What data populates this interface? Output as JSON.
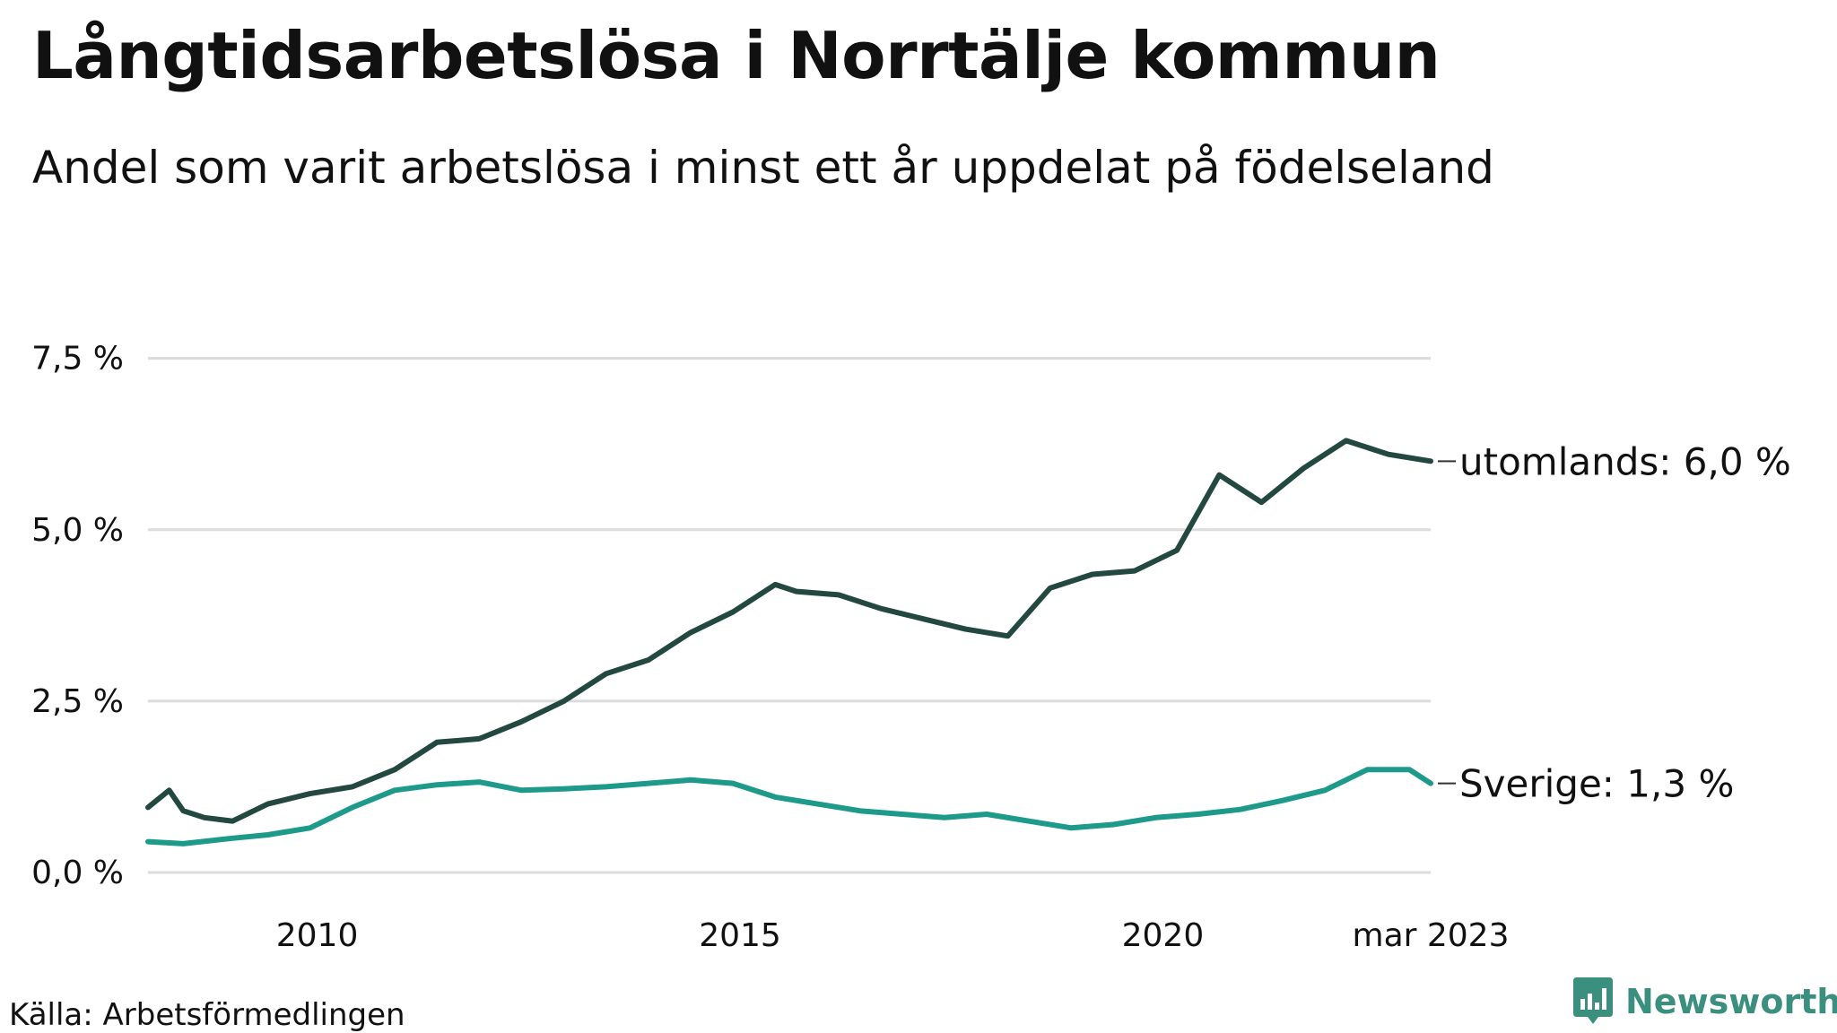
{
  "chart_data": {
    "type": "line",
    "title": "Långtidsarbetslösa i Norrtälje kommun",
    "subtitle": "Andel som varit arbetslösa i minst ett år uppdelat på födelseland",
    "source": "Källa: Arbetsförmedlingen",
    "brand": "Newsworthy",
    "ylim": [
      0,
      9
    ],
    "yticks": [
      0,
      2.5,
      5,
      7.5
    ],
    "ytick_labels": [
      "0,0 %",
      "2,5 %",
      "5,0 %",
      "7,5 %"
    ],
    "xlim": [
      "2008-01",
      "2023-03"
    ],
    "xticks": [
      "2010-01",
      "2015-01",
      "2020-01",
      "2023-03"
    ],
    "xtick_labels": [
      "2010",
      "2015",
      "2020",
      "mar 2023"
    ],
    "grid": "horizontal",
    "series": [
      {
        "name": "utomlands",
        "end_label": "utomlands: 6,0 %",
        "color": "#22483f",
        "values": [
          [
            "2008-01",
            0.95
          ],
          [
            "2008-04",
            1.2
          ],
          [
            "2008-06",
            0.9
          ],
          [
            "2008-09",
            0.8
          ],
          [
            "2009-01",
            0.75
          ],
          [
            "2009-06",
            1.0
          ],
          [
            "2009-12",
            1.15
          ],
          [
            "2010-06",
            1.25
          ],
          [
            "2010-12",
            1.5
          ],
          [
            "2011-06",
            1.9
          ],
          [
            "2011-12",
            1.95
          ],
          [
            "2012-06",
            2.2
          ],
          [
            "2012-12",
            2.5
          ],
          [
            "2013-06",
            2.9
          ],
          [
            "2013-12",
            3.1
          ],
          [
            "2014-06",
            3.5
          ],
          [
            "2014-12",
            3.8
          ],
          [
            "2015-06",
            4.2
          ],
          [
            "2015-09",
            4.1
          ],
          [
            "2016-03",
            4.05
          ],
          [
            "2016-09",
            3.85
          ],
          [
            "2017-03",
            3.7
          ],
          [
            "2017-09",
            3.55
          ],
          [
            "2018-03",
            3.45
          ],
          [
            "2018-09",
            4.15
          ],
          [
            "2019-03",
            4.35
          ],
          [
            "2019-09",
            4.4
          ],
          [
            "2020-03",
            4.7
          ],
          [
            "2020-09",
            5.8
          ],
          [
            "2021-03",
            5.4
          ],
          [
            "2021-09",
            5.9
          ],
          [
            "2022-03",
            6.3
          ],
          [
            "2022-09",
            6.1
          ],
          [
            "2023-03",
            6.0
          ]
        ]
      },
      {
        "name": "Sverige",
        "end_label": "Sverige: 1,3 %",
        "color": "#1e9a8a",
        "values": [
          [
            "2008-01",
            0.45
          ],
          [
            "2008-06",
            0.42
          ],
          [
            "2009-01",
            0.5
          ],
          [
            "2009-06",
            0.55
          ],
          [
            "2009-12",
            0.65
          ],
          [
            "2010-06",
            0.95
          ],
          [
            "2010-12",
            1.2
          ],
          [
            "2011-06",
            1.28
          ],
          [
            "2011-12",
            1.32
          ],
          [
            "2012-06",
            1.2
          ],
          [
            "2012-12",
            1.22
          ],
          [
            "2013-06",
            1.25
          ],
          [
            "2013-12",
            1.3
          ],
          [
            "2014-06",
            1.35
          ],
          [
            "2014-12",
            1.3
          ],
          [
            "2015-06",
            1.1
          ],
          [
            "2015-12",
            1.0
          ],
          [
            "2016-06",
            0.9
          ],
          [
            "2016-12",
            0.85
          ],
          [
            "2017-06",
            0.8
          ],
          [
            "2017-12",
            0.85
          ],
          [
            "2018-06",
            0.75
          ],
          [
            "2018-12",
            0.65
          ],
          [
            "2019-06",
            0.7
          ],
          [
            "2019-12",
            0.8
          ],
          [
            "2020-06",
            0.85
          ],
          [
            "2020-12",
            0.92
          ],
          [
            "2021-06",
            1.05
          ],
          [
            "2021-12",
            1.2
          ],
          [
            "2022-06",
            1.5
          ],
          [
            "2022-12",
            1.5
          ],
          [
            "2023-03",
            1.3
          ]
        ]
      }
    ]
  }
}
